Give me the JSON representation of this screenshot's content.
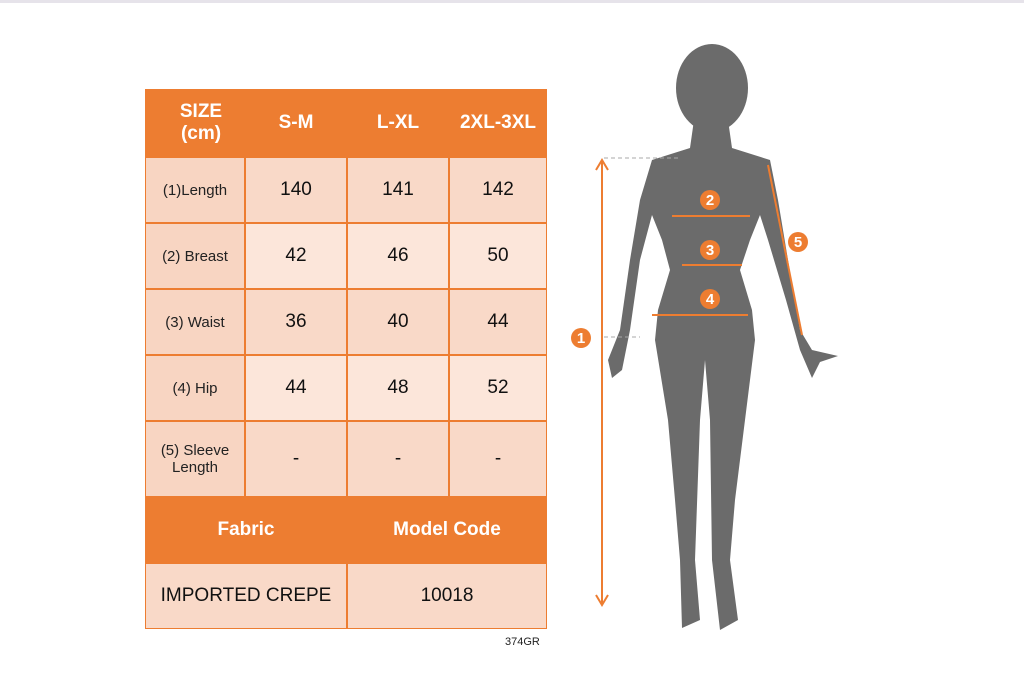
{
  "table": {
    "header": [
      "SIZE (cm)",
      "S-M",
      "L-XL",
      "2XL-3XL"
    ],
    "rows": [
      {
        "label": "(1)Length",
        "values": [
          "140",
          "141",
          "142"
        ]
      },
      {
        "label": "(2) Breast",
        "values": [
          "42",
          "46",
          "50"
        ]
      },
      {
        "label": "(3) Waist",
        "values": [
          "36",
          "40",
          "44"
        ]
      },
      {
        "label": "(4) Hip",
        "values": [
          "44",
          "48",
          "52"
        ]
      },
      {
        "label": "(5) Sleeve Length",
        "values": [
          "-",
          "-",
          "-"
        ]
      }
    ],
    "footer_header": [
      "Fabric",
      "Model Code"
    ],
    "footer_values": [
      "IMPORTED CREPE",
      "10018"
    ]
  },
  "note": "374GR",
  "figure": {
    "markers": [
      "1",
      "2",
      "3",
      "4",
      "5"
    ]
  },
  "colors": {
    "accent": "#ED7D31",
    "silhouette": "#6b6b6b"
  }
}
